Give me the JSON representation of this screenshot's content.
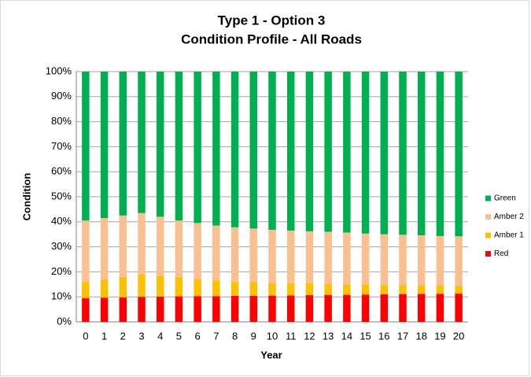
{
  "chart_data": {
    "type": "stacked_bar",
    "title": "Type 1 - Option 3",
    "subtitle": "Condition Profile - All Roads",
    "x_label": "Year",
    "y_label": "Condition",
    "categories": [
      "0",
      "1",
      "2",
      "3",
      "4",
      "5",
      "6",
      "7",
      "8",
      "9",
      "10",
      "11",
      "12",
      "13",
      "14",
      "15",
      "16",
      "17",
      "18",
      "19",
      "20"
    ],
    "series": [
      {
        "name": "Red",
        "color": "#ff0000",
        "values": [
          9.5,
          9.7,
          9.8,
          10,
          10.1,
          10.2,
          10.3,
          10.3,
          10.4,
          10.4,
          10.5,
          10.6,
          10.7,
          10.8,
          10.8,
          10.9,
          11,
          11.1,
          11.2,
          11.2,
          11.3
        ]
      },
      {
        "name": "Amber 1",
        "color": "#ffc000",
        "values": [
          6.5,
          7.3,
          8.2,
          9,
          8.4,
          7.8,
          6.7,
          6.2,
          5.6,
          5.6,
          5,
          4.9,
          4.8,
          4.4,
          4.2,
          4.1,
          3.8,
          3.7,
          3.5,
          3.3,
          3.0
        ]
      },
      {
        "name": "Amber 2",
        "color": "#fac090",
        "values": [
          24.5,
          24.5,
          24.5,
          24.5,
          23.5,
          22.5,
          22.5,
          22,
          21.8,
          21.3,
          21.3,
          21,
          20.7,
          20.8,
          20.7,
          20.3,
          20.2,
          20,
          19.9,
          19.8,
          19.9
        ]
      },
      {
        "name": "Green",
        "color": "#00b050",
        "values": [
          59.5,
          58.5,
          57.5,
          56.5,
          58,
          59.5,
          60.5,
          61.5,
          62.2,
          62.7,
          63.2,
          63.5,
          63.8,
          64,
          64.3,
          64.7,
          65,
          65.2,
          65.4,
          65.7,
          65.8
        ]
      }
    ],
    "ylim": [
      0,
      100
    ],
    "yticks": [
      {
        "value": 0,
        "label": "0%"
      },
      {
        "value": 10,
        "label": "10%"
      },
      {
        "value": 20,
        "label": "20%"
      },
      {
        "value": 30,
        "label": "30%"
      },
      {
        "value": 40,
        "label": "40%"
      },
      {
        "value": 50,
        "label": "50%"
      },
      {
        "value": 60,
        "label": "60%"
      },
      {
        "value": 70,
        "label": "70%"
      },
      {
        "value": 80,
        "label": "80%"
      },
      {
        "value": 90,
        "label": "90%"
      },
      {
        "value": 100,
        "label": "100%"
      }
    ],
    "grid": true,
    "legend": "right"
  }
}
